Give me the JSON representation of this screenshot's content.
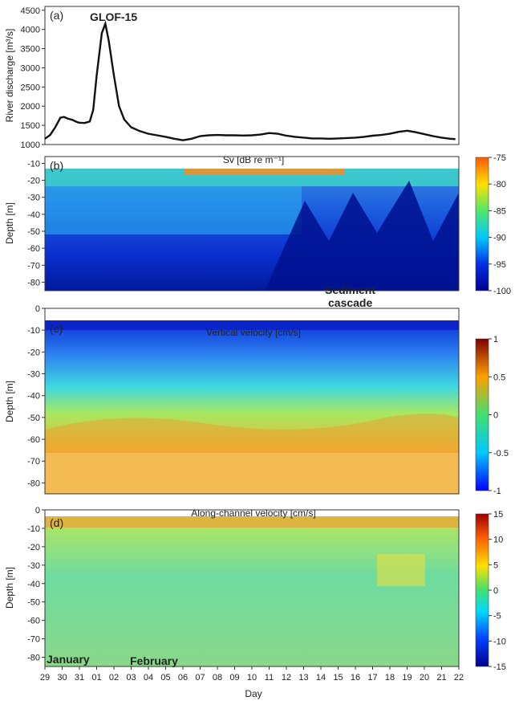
{
  "chart_data": [
    {
      "panel": "(a)",
      "type": "line",
      "ylabel": "River discharge [m³/s]",
      "ylim": [
        1000,
        4600
      ],
      "yticks": [
        1000,
        1500,
        2000,
        2500,
        3000,
        3500,
        4000,
        4500
      ],
      "annotations": [
        "GLOF-15"
      ],
      "series": [
        {
          "x": [
            29.0,
            29.3,
            29.6,
            29.9,
            30.1,
            30.3,
            30.6,
            30.9,
            31.0,
            31.3,
            31.6,
            31.8,
            32.0,
            32.3,
            32.5,
            32.7,
            33.0,
            33.3,
            33.6,
            34.0,
            34.5,
            35.0,
            35.5,
            36.0,
            36.5,
            37.0,
            37.5,
            38.0,
            38.5,
            39.0,
            39.5,
            40.0,
            40.5,
            41.0,
            41.5,
            42.0,
            42.5,
            43.0,
            43.5,
            44.0,
            44.5,
            45.0,
            45.5,
            46.0,
            46.5,
            47.0,
            47.5,
            48.0,
            48.5,
            49.0,
            49.5,
            50.0,
            50.5,
            51.0,
            51.5,
            52.0,
            52.5,
            52.8
          ],
          "y": [
            1150,
            1250,
            1450,
            1700,
            1720,
            1680,
            1640,
            1580,
            1570,
            1560,
            1600,
            1900,
            2800,
            3900,
            4150,
            3700,
            2800,
            2000,
            1650,
            1450,
            1350,
            1280,
            1240,
            1200,
            1150,
            1110,
            1150,
            1220,
            1240,
            1250,
            1240,
            1240,
            1235,
            1240,
            1260,
            1300,
            1280,
            1230,
            1200,
            1180,
            1160,
            1160,
            1150,
            1160,
            1170,
            1180,
            1200,
            1230,
            1250,
            1280,
            1330,
            1360,
            1320,
            1270,
            1220,
            1180,
            1150,
            1140
          ]
        }
      ]
    },
    {
      "panel": "(b)",
      "type": "heatmap",
      "title": "Sv [dB re m⁻¹]",
      "ylabel": "Depth [m]",
      "ylim": [
        -85,
        -6
      ],
      "yticks": [
        -10,
        -20,
        -30,
        -40,
        -50,
        -60,
        -70,
        -80
      ],
      "colorbar": {
        "min": -100,
        "max": -75,
        "ticks": [
          "-75",
          "-80",
          "-85",
          "-90",
          "-95",
          "-100"
        ]
      },
      "annotations": [
        "Sediment",
        "cascade"
      ]
    },
    {
      "panel": "(c)",
      "type": "heatmap",
      "title": "Vertical velocity [cm/s]",
      "ylabel": "Depth [m]",
      "ylim": [
        -85,
        0
      ],
      "yticks": [
        0,
        -10,
        -20,
        -30,
        -40,
        -50,
        -60,
        -70,
        -80
      ],
      "colorbar": {
        "min": -1,
        "max": 1,
        "ticks": [
          "1",
          "0.5",
          "0",
          "-0.5",
          "-1"
        ]
      }
    },
    {
      "panel": "(d)",
      "type": "heatmap",
      "title": "Along-channel velocity [cm/s]",
      "ylabel": "Depth [m]",
      "ylim": [
        -85,
        0
      ],
      "yticks": [
        0,
        -10,
        -20,
        -30,
        -40,
        -50,
        -60,
        -70,
        -80
      ],
      "colorbar": {
        "min": -15,
        "max": 15,
        "ticks": [
          "15",
          "10",
          "5",
          "0",
          "-5",
          "-10",
          "-15"
        ]
      },
      "annotations": [
        "January",
        "February"
      ]
    }
  ],
  "xaxis": {
    "label": "Day",
    "ticks": [
      "29",
      "30",
      "31",
      "01",
      "02",
      "03",
      "04",
      "05",
      "06",
      "07",
      "08",
      "09",
      "10",
      "11",
      "12",
      "13",
      "14",
      "15",
      "16",
      "17",
      "18",
      "19",
      "20",
      "21",
      "22"
    ]
  },
  "colors": {
    "line": "#111111",
    "jet_low": "#00008f",
    "jet_high": "#800000"
  }
}
